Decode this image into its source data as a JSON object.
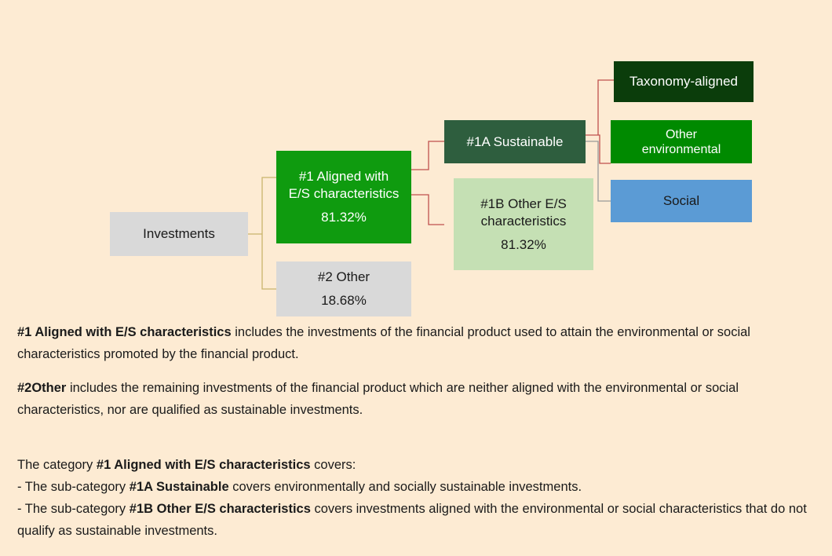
{
  "nodes": [
    {
      "label": "Investments"
    },
    {
      "label": "#1 Aligned with E/S characteristics",
      "value": "81.32%"
    },
    {
      "label": "#2 Other",
      "value": "18.68%"
    },
    {
      "label": "#1A Sustainable"
    },
    {
      "label": "#1B Other E/S characteristics",
      "value": "81.32%"
    },
    {
      "label": "Taxonomy-aligned"
    },
    {
      "label": "Other environmental"
    },
    {
      "label": "Social"
    }
  ],
  "definitions": [
    {
      "term": "#1 Aligned with E/S characteristics",
      "text": "includes the investments of the financial product used to attain the environmental or social characteristics promoted by the financial product."
    },
    {
      "term": "#2Other",
      "text": "includes the remaining investments of the financial product which are neither aligned with the environmental or social characteristics, nor are qualified as sustainable investments."
    }
  ],
  "category": {
    "intro": {
      "before": "The category",
      "term": "#1 Aligned with E/S characteristics",
      "after": "covers:"
    },
    "items": [
      {
        "before": "- The sub-category",
        "term": "#1A Sustainable",
        "after": "covers environmentally and socially sustainable investments."
      },
      {
        "before": "- The sub-category",
        "term": "#1B Other E/S characteristics",
        "after": "covers investments aligned with the environmental or social characteristics that do not qualify as sustainable investments."
      }
    ]
  }
}
